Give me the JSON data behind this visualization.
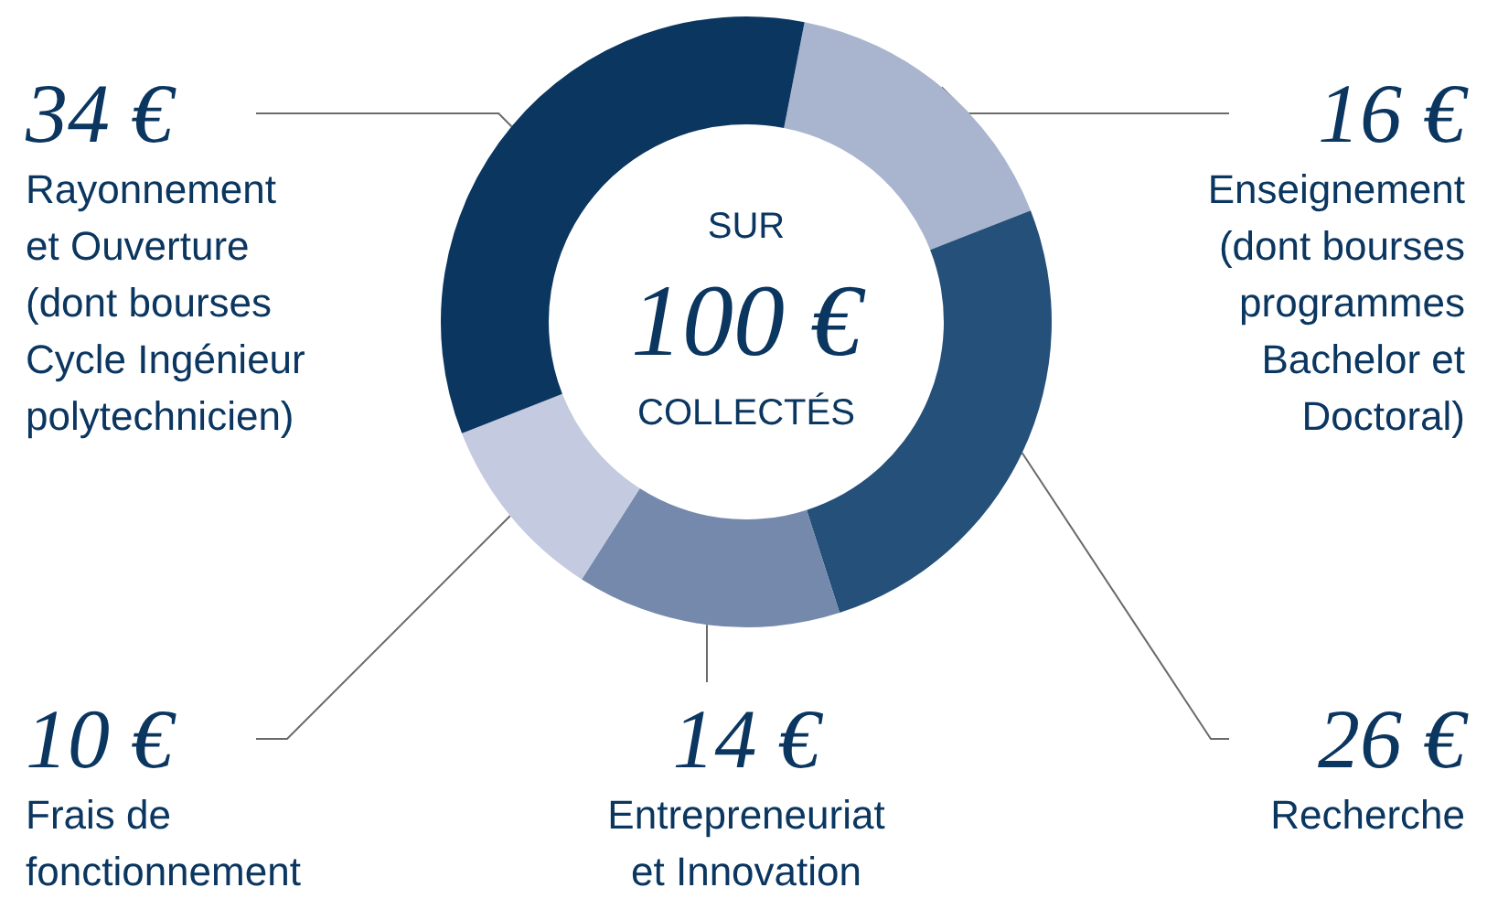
{
  "chart_data": {
    "type": "donut",
    "categories": [
      "Enseignement\n(dont bourses\nprogrammes\nBachelor et\nDoctoral)",
      "Recherche",
      "Entrepreneuriat\net Innovation",
      "Frais de\nfonctionnement",
      "Rayonnement\net Ouverture\n(dont bourses\nCycle Ingénieur\npolytechnicien)"
    ],
    "values": [
      16,
      26,
      14,
      10,
      34
    ],
    "value_labels": [
      "16 €",
      "26 €",
      "14 €",
      "10 €",
      "34 €"
    ],
    "colors": [
      "#a9b5cf",
      "#24507a",
      "#7489ab",
      "#c4cadf",
      "#0a3660"
    ],
    "annotations": [
      "SUR",
      "100 €",
      "COLLECTÉS"
    ]
  }
}
